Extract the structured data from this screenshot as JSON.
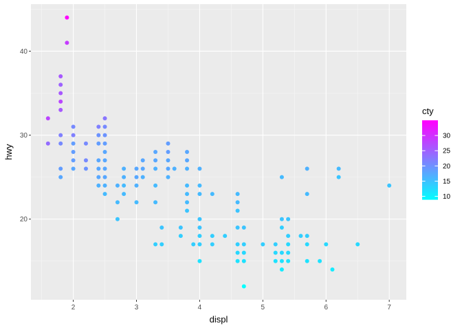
{
  "chart_data": {
    "type": "scatter",
    "xlabel": "displ",
    "ylabel": "hwy",
    "xlim": [
      1.33,
      7.27
    ],
    "ylim": [
      10.4,
      45.6
    ],
    "x_ticks": [
      2,
      3,
      4,
      5,
      6,
      7
    ],
    "y_ticks": [
      20,
      30,
      40
    ],
    "x_tick_labels": [
      "2",
      "3",
      "4",
      "5",
      "6",
      "7"
    ],
    "y_tick_labels": [
      "20",
      "30",
      "40"
    ],
    "grid": true,
    "legend": {
      "title": "cty",
      "position": "right",
      "type": "colorbar",
      "range": [
        9,
        35
      ],
      "breaks": [
        10,
        15,
        20,
        25,
        30
      ],
      "break_labels": [
        "10",
        "15",
        "20",
        "25",
        "30"
      ],
      "low_color": "#00ffff",
      "high_color": "#ff00ff"
    },
    "colors": {
      "panel_background": "#ebebeb",
      "grid_major": "#ffffff",
      "low": "#00ffff",
      "high": "#ff00ff"
    },
    "points": [
      [
        1.6,
        32,
        28
      ],
      [
        1.6,
        29,
        24
      ],
      [
        1.8,
        37,
        26
      ],
      [
        1.8,
        36,
        25
      ],
      [
        1.8,
        35,
        26
      ],
      [
        1.8,
        34,
        28
      ],
      [
        1.8,
        33,
        26
      ],
      [
        1.8,
        30,
        22
      ],
      [
        1.8,
        29,
        21
      ],
      [
        1.8,
        26,
        19
      ],
      [
        1.8,
        25,
        18
      ],
      [
        1.9,
        44,
        35
      ],
      [
        1.9,
        41,
        29
      ],
      [
        2.0,
        31,
        21
      ],
      [
        2.0,
        30,
        22
      ],
      [
        2.0,
        29,
        19
      ],
      [
        2.0,
        28,
        19
      ],
      [
        2.0,
        27,
        19
      ],
      [
        2.0,
        26,
        18
      ],
      [
        2.2,
        29,
        21
      ],
      [
        2.2,
        27,
        21
      ],
      [
        2.2,
        26,
        20
      ],
      [
        2.4,
        31,
        22
      ],
      [
        2.4,
        30,
        20
      ],
      [
        2.4,
        29,
        19
      ],
      [
        2.4,
        27,
        18
      ],
      [
        2.4,
        26,
        18
      ],
      [
        2.4,
        25,
        18
      ],
      [
        2.4,
        24,
        17
      ],
      [
        2.5,
        32,
        23
      ],
      [
        2.5,
        31,
        21
      ],
      [
        2.5,
        30,
        20
      ],
      [
        2.5,
        29,
        19
      ],
      [
        2.5,
        28,
        18
      ],
      [
        2.5,
        27,
        18
      ],
      [
        2.5,
        26,
        18
      ],
      [
        2.5,
        25,
        18
      ],
      [
        2.5,
        24,
        17
      ],
      [
        2.5,
        23,
        16
      ],
      [
        2.7,
        24,
        17
      ],
      [
        2.7,
        22,
        16
      ],
      [
        2.7,
        20,
        15
      ],
      [
        2.8,
        26,
        17
      ],
      [
        2.8,
        25,
        17
      ],
      [
        2.8,
        24,
        16
      ],
      [
        2.8,
        23,
        16
      ],
      [
        3.0,
        26,
        18
      ],
      [
        3.0,
        25,
        18
      ],
      [
        3.0,
        24,
        17
      ],
      [
        3.0,
        22,
        16
      ],
      [
        3.1,
        27,
        18
      ],
      [
        3.1,
        26,
        18
      ],
      [
        3.1,
        25,
        17
      ],
      [
        3.3,
        28,
        18
      ],
      [
        3.3,
        27,
        18
      ],
      [
        3.3,
        26,
        17
      ],
      [
        3.3,
        24,
        16
      ],
      [
        3.3,
        22,
        16
      ],
      [
        3.3,
        17,
        14
      ],
      [
        3.4,
        19,
        15
      ],
      [
        3.4,
        17,
        14
      ],
      [
        3.5,
        29,
        19
      ],
      [
        3.5,
        28,
        19
      ],
      [
        3.5,
        27,
        18
      ],
      [
        3.5,
        26,
        18
      ],
      [
        3.5,
        25,
        17
      ],
      [
        3.6,
        26,
        17
      ],
      [
        3.7,
        19,
        15
      ],
      [
        3.7,
        18,
        14
      ],
      [
        3.8,
        28,
        18
      ],
      [
        3.8,
        27,
        18
      ],
      [
        3.8,
        26,
        17
      ],
      [
        3.8,
        24,
        16
      ],
      [
        3.8,
        23,
        16
      ],
      [
        3.8,
        22,
        16
      ],
      [
        3.8,
        21,
        15
      ],
      [
        3.9,
        17,
        14
      ],
      [
        4.0,
        26,
        17
      ],
      [
        4.0,
        24,
        16
      ],
      [
        4.0,
        23,
        16
      ],
      [
        4.0,
        20,
        15
      ],
      [
        4.0,
        19,
        15
      ],
      [
        4.0,
        18,
        14
      ],
      [
        4.0,
        17,
        14
      ],
      [
        4.0,
        15,
        12
      ],
      [
        4.2,
        23,
        16
      ],
      [
        4.2,
        18,
        14
      ],
      [
        4.2,
        17,
        14
      ],
      [
        4.4,
        18,
        14
      ],
      [
        4.6,
        23,
        16
      ],
      [
        4.6,
        22,
        16
      ],
      [
        4.6,
        21,
        15
      ],
      [
        4.6,
        19,
        15
      ],
      [
        4.6,
        17,
        14
      ],
      [
        4.6,
        16,
        13
      ],
      [
        4.6,
        15,
        12
      ],
      [
        4.7,
        19,
        15
      ],
      [
        4.7,
        17,
        14
      ],
      [
        4.7,
        16,
        13
      ],
      [
        4.7,
        15,
        12
      ],
      [
        4.7,
        12,
        9
      ],
      [
        5.0,
        17,
        14
      ],
      [
        5.2,
        17,
        14
      ],
      [
        5.2,
        16,
        13
      ],
      [
        5.2,
        15,
        12
      ],
      [
        5.3,
        25,
        16
      ],
      [
        5.3,
        20,
        15
      ],
      [
        5.3,
        19,
        14
      ],
      [
        5.3,
        16,
        13
      ],
      [
        5.3,
        15,
        12
      ],
      [
        5.3,
        14,
        11
      ],
      [
        5.4,
        20,
        15
      ],
      [
        5.4,
        18,
        14
      ],
      [
        5.4,
        17,
        13
      ],
      [
        5.4,
        16,
        13
      ],
      [
        5.4,
        15,
        12
      ],
      [
        5.6,
        18,
        14
      ],
      [
        5.7,
        26,
        17
      ],
      [
        5.7,
        23,
        16
      ],
      [
        5.7,
        18,
        14
      ],
      [
        5.7,
        17,
        13
      ],
      [
        5.7,
        15,
        12
      ],
      [
        5.9,
        15,
        12
      ],
      [
        6.0,
        17,
        13
      ],
      [
        6.1,
        14,
        11
      ],
      [
        6.2,
        26,
        16
      ],
      [
        6.2,
        25,
        15
      ],
      [
        6.5,
        17,
        13
      ],
      [
        7.0,
        24,
        15
      ]
    ]
  }
}
